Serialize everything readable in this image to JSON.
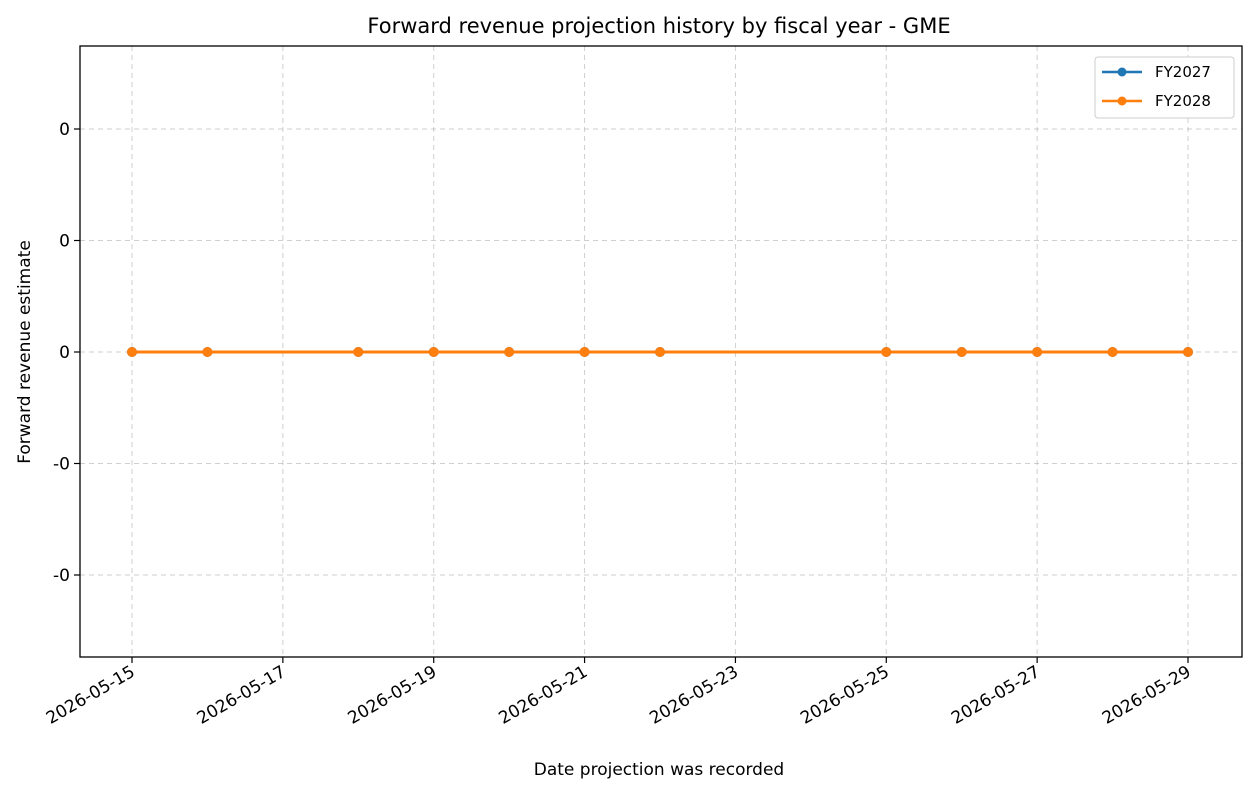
{
  "chart_data": {
    "type": "line",
    "title": "Forward revenue projection history by fiscal year - GME",
    "xlabel": "Date projection was recorded",
    "ylabel": "Forward revenue estimate",
    "x_tick_labels": [
      "2026-05-15",
      "2026-05-17",
      "2026-05-19",
      "2026-05-21",
      "2026-05-23",
      "2026-05-25",
      "2026-05-27",
      "2026-05-29"
    ],
    "y_tick_labels": [
      "0",
      "0",
      "0",
      "-0",
      "-0"
    ],
    "xlim": [
      "2026-05-14",
      "2026-05-30"
    ],
    "grid": true,
    "legend_position": "top-right",
    "series": [
      {
        "name": "FY2027",
        "color": "#1f77b4",
        "marker": "circle",
        "x": [
          "2026-05-15",
          "2026-05-16",
          "2026-05-18",
          "2026-05-19",
          "2026-05-20",
          "2026-05-21",
          "2026-05-22",
          "2026-05-25",
          "2026-05-26",
          "2026-05-27",
          "2026-05-28",
          "2026-05-29"
        ],
        "values": [
          0,
          0,
          0,
          0,
          0,
          0,
          0,
          0,
          0,
          0,
          0,
          0
        ]
      },
      {
        "name": "FY2028",
        "color": "#ff7f0e",
        "marker": "circle",
        "x": [
          "2026-05-15",
          "2026-05-16",
          "2026-05-18",
          "2026-05-19",
          "2026-05-20",
          "2026-05-21",
          "2026-05-22",
          "2026-05-25",
          "2026-05-26",
          "2026-05-27",
          "2026-05-28",
          "2026-05-29"
        ],
        "values": [
          0,
          0,
          0,
          0,
          0,
          0,
          0,
          0,
          0,
          0,
          0,
          0
        ]
      }
    ]
  }
}
